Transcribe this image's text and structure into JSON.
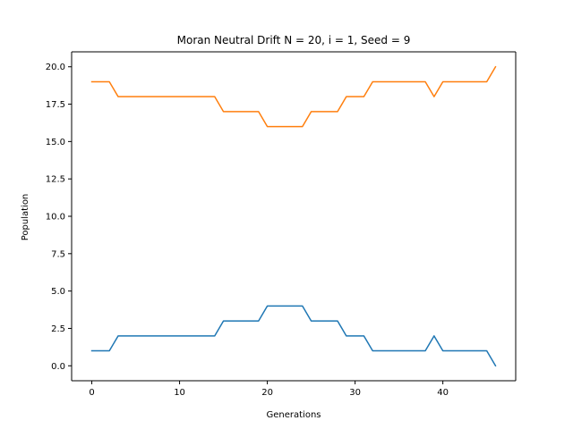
{
  "chart_data": {
    "type": "line",
    "title": "Moran Neutral Drift N = 20, i = 1, Seed = 9",
    "xlabel": "Generations",
    "ylabel": "Population",
    "xlim": [
      -2.3,
      48.3
    ],
    "ylim": [
      -1.0,
      21.0
    ],
    "x_ticks": [
      0,
      10,
      20,
      30,
      40
    ],
    "x_tick_labels": [
      "0",
      "10",
      "20",
      "30",
      "40"
    ],
    "y_ticks": [
      0,
      2.5,
      5,
      7.5,
      10,
      12.5,
      15,
      17.5,
      20
    ],
    "y_tick_labels": [
      "0.0",
      "2.5",
      "5.0",
      "7.5",
      "10.0",
      "12.5",
      "15.0",
      "17.5",
      "20.0"
    ],
    "grid": false,
    "legend": "none",
    "x": [
      0,
      1,
      2,
      3,
      4,
      5,
      6,
      7,
      8,
      9,
      10,
      11,
      12,
      13,
      14,
      15,
      16,
      17,
      18,
      19,
      20,
      21,
      22,
      23,
      24,
      25,
      26,
      27,
      28,
      29,
      30,
      31,
      32,
      33,
      34,
      35,
      36,
      37,
      38,
      39,
      40,
      41,
      42,
      43,
      44,
      45,
      46
    ],
    "series": [
      {
        "color": "#1f77b4",
        "values": [
          1,
          1,
          1,
          2,
          2,
          2,
          2,
          2,
          2,
          2,
          2,
          2,
          2,
          2,
          2,
          3,
          3,
          3,
          3,
          3,
          4,
          4,
          4,
          4,
          4,
          3,
          3,
          3,
          3,
          2,
          2,
          2,
          1,
          1,
          1,
          1,
          1,
          1,
          1,
          2,
          1,
          1,
          1,
          1,
          1,
          1,
          0
        ]
      },
      {
        "color": "#ff7f0e",
        "values": [
          19,
          19,
          19,
          18,
          18,
          18,
          18,
          18,
          18,
          18,
          18,
          18,
          18,
          18,
          18,
          17,
          17,
          17,
          17,
          17,
          16,
          16,
          16,
          16,
          16,
          17,
          17,
          17,
          17,
          18,
          18,
          18,
          19,
          19,
          19,
          19,
          19,
          19,
          19,
          18,
          19,
          19,
          19,
          19,
          19,
          19,
          20
        ]
      }
    ]
  }
}
